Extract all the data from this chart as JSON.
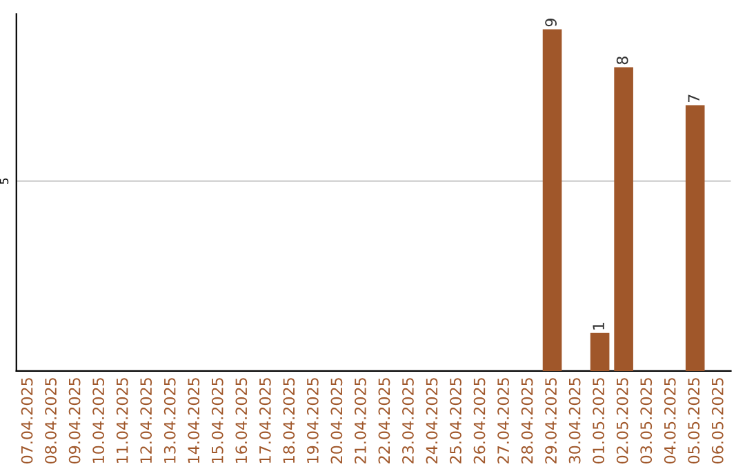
{
  "chart_data": {
    "type": "bar",
    "categories": [
      "07.04.2025",
      "08.04.2025",
      "09.04.2025",
      "10.04.2025",
      "11.04.2025",
      "12.04.2025",
      "13.04.2025",
      "14.04.2025",
      "15.04.2025",
      "16.04.2025",
      "17.04.2025",
      "18.04.2025",
      "19.04.2025",
      "20.04.2025",
      "21.04.2025",
      "22.04.2025",
      "23.04.2025",
      "24.04.2025",
      "25.04.2025",
      "26.04.2025",
      "27.04.2025",
      "28.04.2025",
      "29.04.2025",
      "30.04.2025",
      "01.05.2025",
      "02.05.2025",
      "03.05.2025",
      "04.05.2025",
      "05.05.2025",
      "06.05.2025"
    ],
    "values": [
      null,
      null,
      null,
      null,
      null,
      null,
      null,
      null,
      null,
      null,
      null,
      null,
      null,
      null,
      null,
      null,
      null,
      null,
      null,
      null,
      null,
      null,
      9,
      null,
      1,
      8,
      null,
      null,
      7,
      null
    ],
    "color": "#a0572a",
    "ylim": [
      0,
      9.4
    ],
    "yticks": [
      5
    ],
    "grid": "y",
    "data_labels": true
  }
}
